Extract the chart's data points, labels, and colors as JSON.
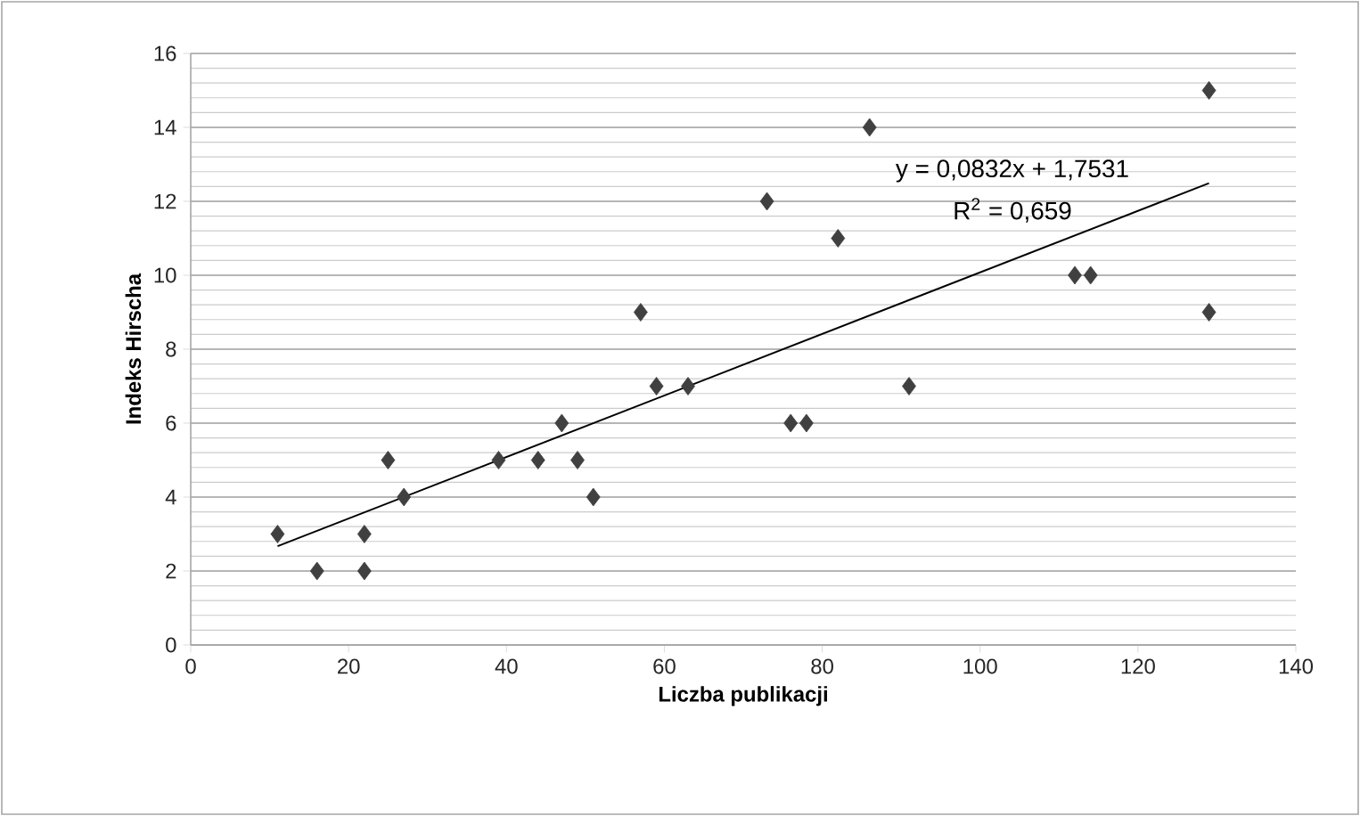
{
  "chart_data": {
    "type": "scatter",
    "xlabel": "Liczba publikacji",
    "ylabel": "Indeks Hirscha",
    "xlim": [
      0,
      140
    ],
    "ylim": [
      0,
      16
    ],
    "xticks": [
      0,
      20,
      40,
      60,
      80,
      100,
      120,
      140
    ],
    "yticks": [
      0,
      2,
      4,
      6,
      8,
      10,
      12,
      14,
      16
    ],
    "grid": "y",
    "marker": "diamond",
    "annotations": [
      "y = 0,0832x + 1,7531",
      "R$^{2}$ = 0,659"
    ],
    "series": [
      {
        "color": "#404040",
        "x": [
          11,
          16,
          22,
          22,
          25,
          27,
          39,
          44,
          47,
          49,
          51,
          57,
          59,
          63,
          73,
          76,
          78,
          82,
          86,
          91,
          112,
          114,
          129,
          129
        ],
        "values": [
          3,
          2,
          3,
          2,
          5,
          4,
          5,
          5,
          6,
          5,
          4,
          9,
          7,
          7,
          12,
          6,
          6,
          11,
          14,
          7,
          10,
          10,
          15,
          9
        ]
      },
      {
        "type": "line",
        "color": "#000000",
        "line_style": "solid",
        "marker": "none",
        "x": [
          11,
          129
        ],
        "values": [
          2.67,
          12.49
        ]
      }
    ]
  }
}
